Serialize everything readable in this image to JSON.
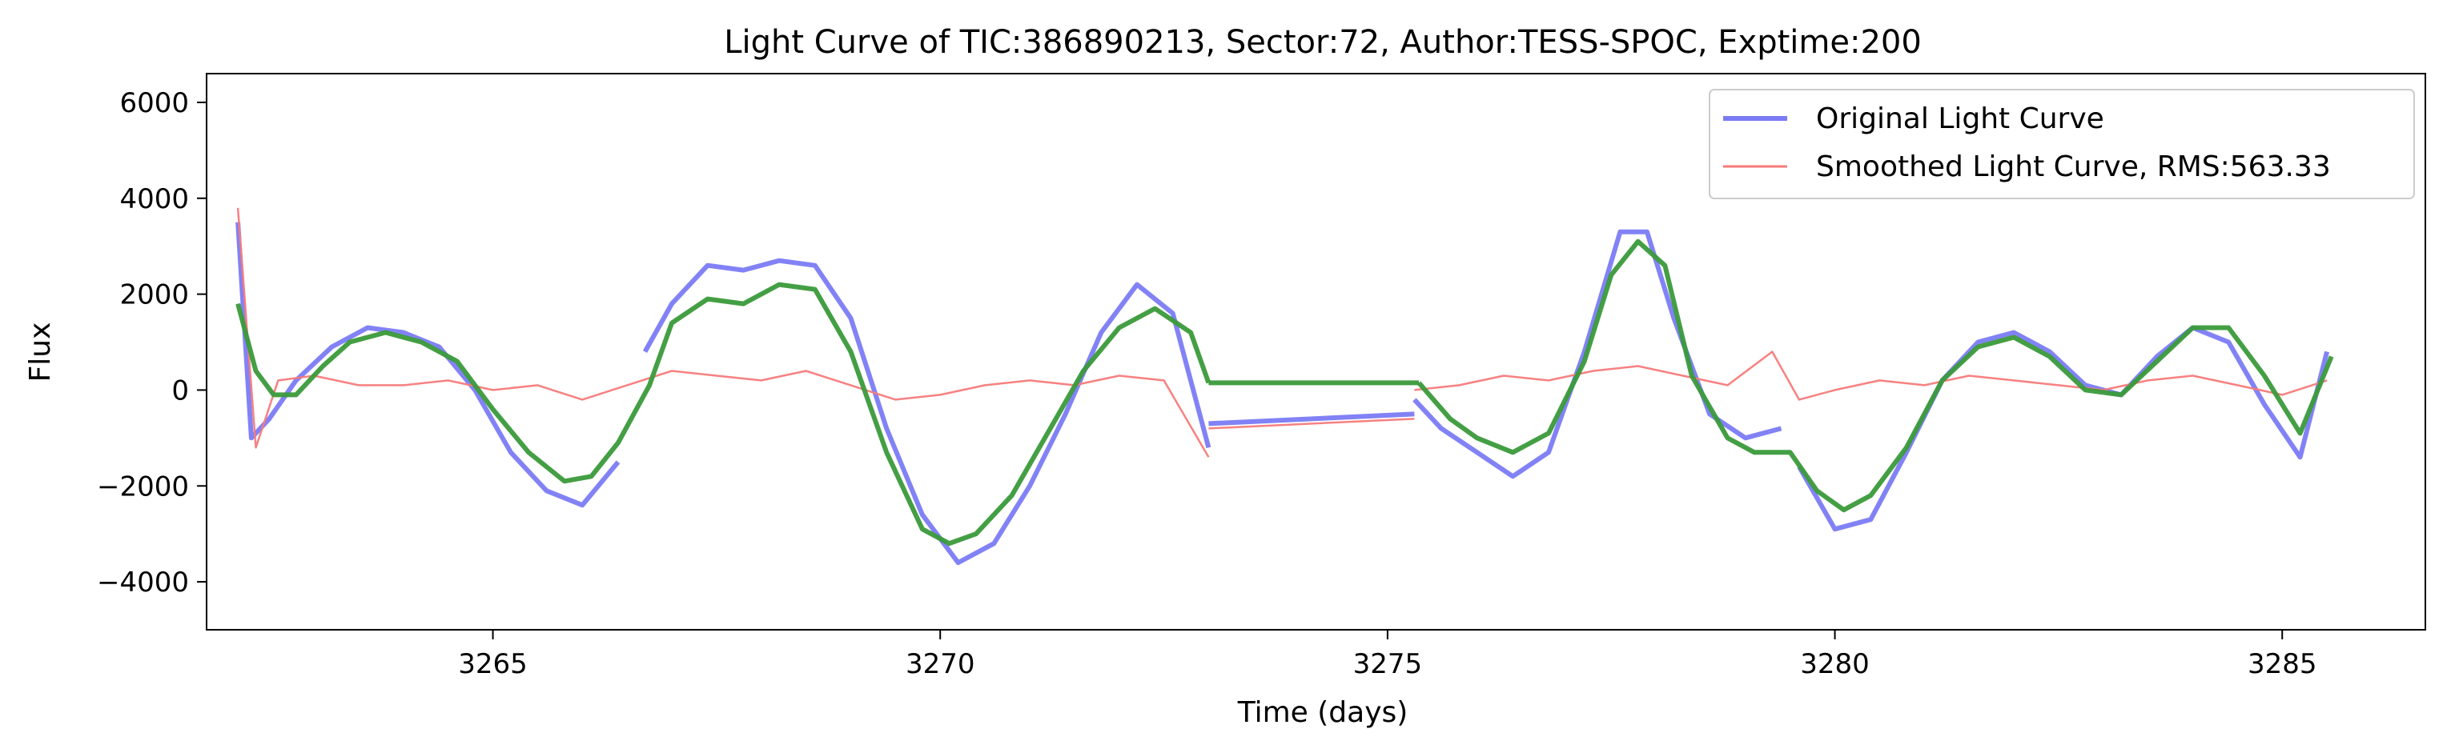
{
  "chart_data": {
    "type": "line",
    "title": "Light Curve of TIC:386890213, Sector:72, Author:TESS-SPOC, Exptime:200",
    "xlabel": "Time (days)",
    "ylabel": "Flux",
    "xlim": [
      3261.8,
      3286.6
    ],
    "ylim": [
      -5000,
      6600
    ],
    "xticks": [
      3265,
      3270,
      3275,
      3280,
      3285
    ],
    "xtick_labels": [
      "3265",
      "3270",
      "3275",
      "3280",
      "3285"
    ],
    "yticks": [
      -4000,
      -2000,
      0,
      2000,
      4000,
      6000
    ],
    "ytick_labels": [
      "−4000",
      "−2000",
      "0",
      "2000",
      "4000",
      "6000"
    ],
    "grid": false,
    "legend_position": "top-right",
    "colors": {
      "original": "#7b7bf6",
      "smoothed": "#f77a7a",
      "trend": "#3a9a3a"
    },
    "series": [
      {
        "name": "Original Light Curve",
        "segments": [
          {
            "x": [
              3262.15,
              3262.3,
              3262.5,
              3262.8,
              3263.2,
              3263.6,
              3264.0,
              3264.4,
              3264.8,
              3265.2,
              3265.6,
              3266.0,
              3266.4
            ],
            "y": [
              3500,
              -1000,
              -600,
              200,
              900,
              1300,
              1200,
              900,
              0,
              -1300,
              -2100,
              -2400,
              -1500
            ]
          },
          {
            "x": [
              3266.7,
              3267.0,
              3267.4,
              3267.8,
              3268.2,
              3268.6,
              3269.0,
              3269.4,
              3269.8,
              3270.2,
              3270.6,
              3271.0,
              3271.4,
              3271.8,
              3272.2,
              3272.6,
              3273.0
            ],
            "y": [
              800,
              1800,
              2600,
              2500,
              2700,
              2600,
              1500,
              -800,
              -2600,
              -3600,
              -3200,
              -2000,
              -500,
              1200,
              2200,
              1600,
              -1200
            ]
          },
          {
            "x": [
              3273.0,
              3275.3
            ],
            "y": [
              -700,
              -500
            ]
          },
          {
            "x": [
              3275.3,
              3275.6,
              3276.0,
              3276.4,
              3276.8,
              3277.2,
              3277.6,
              3277.9,
              3278.2,
              3278.6,
              3279.0,
              3279.4
            ],
            "y": [
              -200,
              -800,
              -1300,
              -1800,
              -1300,
              800,
              3300,
              3300,
              1500,
              -500,
              -1000,
              -800
            ]
          },
          {
            "x": [
              3279.6,
              3280.0,
              3280.4,
              3280.8,
              3281.2,
              3281.6,
              3282.0,
              3282.4,
              3282.8,
              3283.2,
              3283.6,
              3284.0,
              3284.4,
              3284.8,
              3285.2,
              3285.5
            ],
            "y": [
              -1600,
              -2900,
              -2700,
              -1300,
              200,
              1000,
              1200,
              800,
              100,
              -100,
              700,
              1300,
              1000,
              -300,
              -1400,
              800
            ]
          }
        ]
      },
      {
        "name": "Smoothed Light Curve, RMS:563.33",
        "segments": [
          {
            "x": [
              3262.15,
              3262.35,
              3262.6,
              3263.0,
              3263.5,
              3264.0,
              3264.5,
              3265.0,
              3265.5,
              3266.0,
              3266.5,
              3267.0,
              3267.5,
              3268.0,
              3268.5,
              3269.0,
              3269.5,
              3270.0,
              3270.5,
              3271.0,
              3271.5,
              3272.0,
              3272.5,
              3273.0
            ],
            "y": [
              3800,
              -1200,
              200,
              300,
              100,
              100,
              200,
              0,
              100,
              -200,
              100,
              400,
              300,
              200,
              400,
              100,
              -200,
              -100,
              100,
              200,
              100,
              300,
              200,
              -1400
            ]
          },
          {
            "x": [
              3273.0,
              3275.3
            ],
            "y": [
              -800,
              -600
            ]
          },
          {
            "x": [
              3275.3,
              3275.8,
              3276.3,
              3276.8,
              3277.3,
              3277.8,
              3278.3,
              3278.8,
              3279.3,
              3279.6,
              3280.0,
              3280.5,
              3281.0,
              3281.5,
              3282.0,
              3282.5,
              3283.0,
              3283.5,
              3284.0,
              3284.5,
              3285.0,
              3285.5
            ],
            "y": [
              0,
              100,
              300,
              200,
              400,
              500,
              300,
              100,
              800,
              -200,
              0,
              200,
              100,
              300,
              200,
              100,
              0,
              200,
              300,
              100,
              -100,
              200
            ]
          }
        ]
      },
      {
        "segments": [
          {
            "x": [
              3262.15,
              3262.35,
              3262.55,
              3262.8,
              3263.1,
              3263.4,
              3263.8,
              3264.2,
              3264.6,
              3265.0,
              3265.4,
              3265.8,
              3266.1,
              3266.4,
              3266.75,
              3267.0,
              3267.4,
              3267.8,
              3268.2,
              3268.6,
              3269.0,
              3269.4,
              3269.8,
              3270.1,
              3270.4,
              3270.8,
              3271.2,
              3271.6,
              3272.0,
              3272.4,
              3272.8,
              3273.0
            ],
            "y": [
              1800,
              400,
              -100,
              -100,
              500,
              1000,
              1200,
              1000,
              600,
              -400,
              -1300,
              -1900,
              -1800,
              -1100,
              100,
              1400,
              1900,
              1800,
              2200,
              2100,
              800,
              -1300,
              -2900,
              -3200,
              -3000,
              -2200,
              -900,
              400,
              1300,
              1700,
              1200,
              150
            ]
          },
          {
            "x": [
              3273.0,
              3275.35
            ],
            "y": [
              150,
              150
            ]
          },
          {
            "x": [
              3275.35,
              3275.7,
              3276.0,
              3276.4,
              3276.8,
              3277.2,
              3277.5,
              3277.8,
              3278.1,
              3278.4,
              3278.8,
              3279.1,
              3279.5,
              3279.8,
              3280.1,
              3280.4,
              3280.8,
              3281.2,
              3281.6,
              3282.0,
              3282.4,
              3282.8,
              3283.2,
              3283.6,
              3284.0,
              3284.4,
              3284.8,
              3285.2,
              3285.55
            ],
            "y": [
              150,
              -600,
              -1000,
              -1300,
              -900,
              600,
              2400,
              3100,
              2600,
              300,
              -1000,
              -1300,
              -1300,
              -2100,
              -2500,
              -2200,
              -1200,
              200,
              900,
              1100,
              700,
              0,
              -100,
              600,
              1300,
              1300,
              300,
              -900,
              700
            ]
          }
        ]
      }
    ]
  }
}
